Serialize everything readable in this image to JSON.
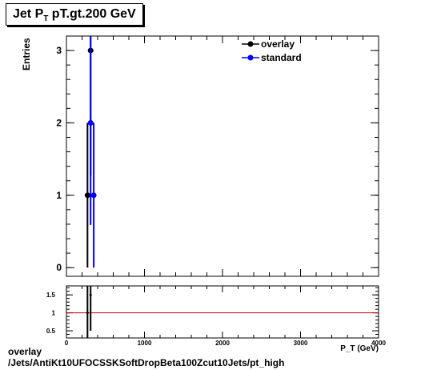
{
  "title": {
    "main": "Jet P",
    "sub": "T",
    "rest": " pT.gt.200 GeV"
  },
  "footer": {
    "line1": "overlay",
    "line2": "/Jets/AntiKt10UFOCSSKSoftDropBeta100Zcut10Jets/pt_high"
  },
  "chart_data": [
    {
      "type": "scatter",
      "ylabel": "Entries",
      "xlim": [
        0,
        4000
      ],
      "ylim": [
        -0.12,
        3.2
      ],
      "yticks": [
        "0",
        "1",
        "2",
        "3"
      ],
      "legend": {
        "placement": "top-right",
        "entries": [
          "overlay",
          "standard"
        ]
      },
      "series": [
        {
          "name": "overlay",
          "color": "#000000",
          "points": [
            {
              "x": 270,
              "y": 1,
              "err": 1
            },
            {
              "x": 310,
              "y": 3,
              "err": 1.73
            }
          ]
        },
        {
          "name": "standard",
          "color": "#0000ff",
          "points": [
            {
              "x": 310,
              "y": 2,
              "err": 1.41
            },
            {
              "x": 350,
              "y": 1,
              "err": 1
            }
          ]
        }
      ]
    },
    {
      "type": "scatter",
      "xlabel": "P_T (GeV)",
      "xlim": [
        0,
        4000
      ],
      "ylim": [
        0.3,
        1.75
      ],
      "xticks": [
        "0",
        "1000",
        "2000",
        "3000",
        "4000"
      ],
      "yticks": [
        "0.5",
        "1",
        "1.5"
      ],
      "reference_line": {
        "y": 1,
        "color": "#cc0000"
      },
      "points": [
        {
          "x": 270,
          "y": 1.0,
          "err": 0.9
        },
        {
          "x": 310,
          "y": 1.5,
          "err": 1.0
        }
      ]
    }
  ]
}
